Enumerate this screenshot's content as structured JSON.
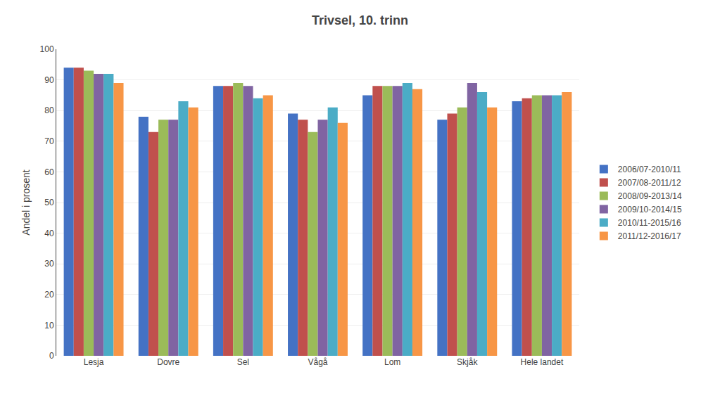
{
  "chart_data": {
    "type": "bar",
    "title": "Trivsel, 10. trinn",
    "categories": [
      "Lesja",
      "Dovre",
      "Sel",
      "Vågå",
      "Lom",
      "Skjåk",
      "Hele landet"
    ],
    "series": [
      {
        "name": "2006/07-2010/11",
        "color": "#4472C4",
        "values": [
          94,
          78,
          88,
          79,
          85,
          77,
          83
        ]
      },
      {
        "name": "2007/08-2011/12",
        "color": "#C0504D",
        "values": [
          94,
          73,
          88,
          77,
          88,
          79,
          84
        ]
      },
      {
        "name": "2008/09-2013/14",
        "color": "#9BBB59",
        "values": [
          93,
          77,
          89,
          73,
          88,
          81,
          85
        ]
      },
      {
        "name": "2009/10-2014/15",
        "color": "#8064A2",
        "values": [
          92,
          77,
          88,
          77,
          88,
          89,
          85
        ]
      },
      {
        "name": "2010/11-2015/16",
        "color": "#4BACC6",
        "values": [
          92,
          83,
          84,
          81,
          89,
          86,
          85
        ]
      },
      {
        "name": "2011/12-2016/17",
        "color": "#F79646",
        "values": [
          89,
          81,
          85,
          76,
          87,
          81,
          86
        ]
      }
    ],
    "ylabel": "Andel i prosent",
    "ylim": [
      0,
      100
    ],
    "yticks": [
      0,
      10,
      20,
      30,
      40,
      50,
      60,
      70,
      80,
      90,
      100
    ],
    "grid": true,
    "legend": "right"
  }
}
